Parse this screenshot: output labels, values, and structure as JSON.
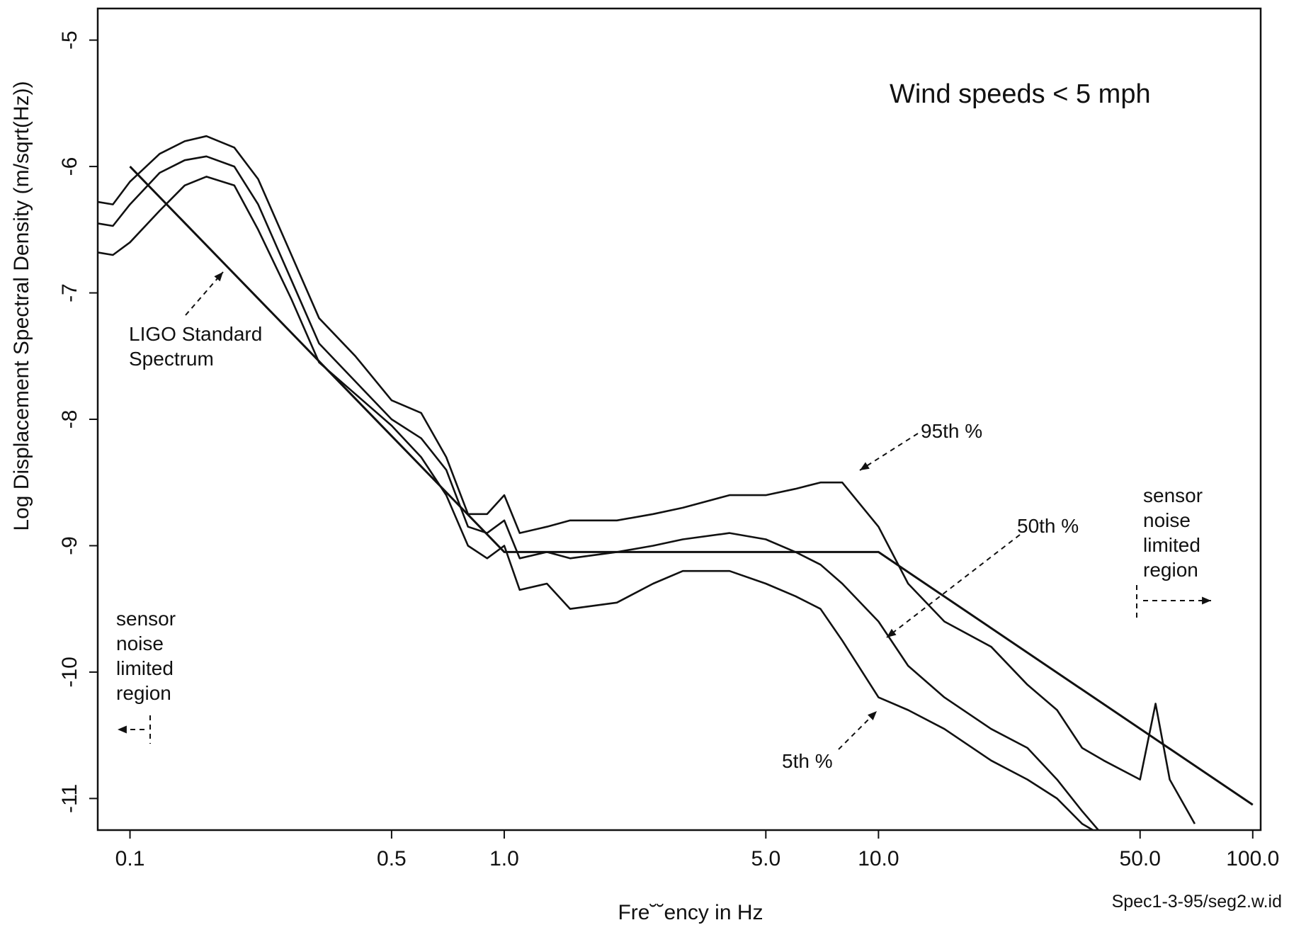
{
  "chart_data": {
    "type": "line",
    "title": "",
    "xlabel": "Fre˘˘ency in Hz",
    "ylabel": "Log Displacement Spectral Density (m/sqrt(Hz))",
    "x_scale": "log",
    "xlim": [
      0.082,
      105
    ],
    "ylim": [
      -11.25,
      -4.75
    ],
    "x_ticks": [
      0.1,
      0.5,
      1.0,
      5.0,
      10.0,
      50.0,
      100.0
    ],
    "x_tick_labels": [
      "0.1",
      "0.5",
      "1.0",
      "5.0",
      "10.0",
      "50.0",
      "100.0"
    ],
    "y_ticks": [
      -5,
      -6,
      -7,
      -8,
      -9,
      -10,
      -11
    ],
    "y_tick_labels": [
      "-5",
      "-6",
      "-7",
      "-8",
      "-9",
      "-10",
      "-11"
    ],
    "grid": false,
    "legend": "none",
    "source_label": "Spec1-3-95/seg2.w.id",
    "annotations": {
      "wind": "Wind speeds < 5 mph",
      "ligo_line1": "LIGO Standard",
      "ligo_line2": "Spectrum",
      "p95": "95th %",
      "p50": "50th %",
      "p5": "5th %",
      "left_sensor": [
        "sensor",
        "noise",
        "limited",
        "region"
      ],
      "right_sensor": [
        "sensor",
        "noise",
        "limited",
        "region"
      ]
    },
    "reference": {
      "name": "LIGO Standard Spectrum",
      "x": [
        0.1,
        1.0,
        10.0,
        100.0
      ],
      "y": [
        -6.0,
        -9.05,
        -9.05,
        -11.05
      ]
    },
    "series": [
      {
        "name": "95th %",
        "x": [
          0.082,
          0.09,
          0.1,
          0.12,
          0.14,
          0.16,
          0.19,
          0.22,
          0.27,
          0.32,
          0.4,
          0.5,
          0.6,
          0.7,
          0.8,
          0.9,
          1.0,
          1.1,
          1.3,
          1.5,
          2.0,
          2.5,
          3.0,
          4.0,
          5.0,
          6.0,
          7.0,
          8.0,
          10.0,
          12.0,
          15.0,
          20.0,
          25.0,
          30.0,
          35.0,
          40.0,
          50.0,
          55.0,
          60.0,
          70.0
        ],
        "y": [
          -6.28,
          -6.3,
          -6.12,
          -5.9,
          -5.8,
          -5.76,
          -5.85,
          -6.1,
          -6.7,
          -7.2,
          -7.5,
          -7.85,
          -7.95,
          -8.3,
          -8.75,
          -8.75,
          -8.6,
          -8.9,
          -8.85,
          -8.8,
          -8.8,
          -8.75,
          -8.7,
          -8.6,
          -8.6,
          -8.55,
          -8.5,
          -8.5,
          -8.85,
          -9.3,
          -9.6,
          -9.8,
          -10.1,
          -10.3,
          -10.6,
          -10.7,
          -10.85,
          -10.25,
          -10.85,
          -11.2
        ]
      },
      {
        "name": "50th %",
        "x": [
          0.082,
          0.09,
          0.1,
          0.12,
          0.14,
          0.16,
          0.19,
          0.22,
          0.27,
          0.32,
          0.4,
          0.5,
          0.6,
          0.7,
          0.8,
          0.9,
          1.0,
          1.1,
          1.3,
          1.5,
          2.0,
          2.5,
          3.0,
          4.0,
          5.0,
          6.0,
          7.0,
          8.0,
          10.0,
          12.0,
          15.0,
          20.0,
          25.0,
          30.0,
          35.0,
          40.0
        ],
        "y": [
          -6.45,
          -6.47,
          -6.3,
          -6.05,
          -5.95,
          -5.92,
          -6.0,
          -6.3,
          -6.9,
          -7.4,
          -7.7,
          -8.0,
          -8.15,
          -8.4,
          -8.85,
          -8.9,
          -8.8,
          -9.1,
          -9.05,
          -9.1,
          -9.05,
          -9.0,
          -8.95,
          -8.9,
          -8.95,
          -9.05,
          -9.15,
          -9.3,
          -9.6,
          -9.95,
          -10.2,
          -10.45,
          -10.6,
          -10.85,
          -11.1,
          -11.3
        ]
      },
      {
        "name": "5th %",
        "x": [
          0.082,
          0.09,
          0.1,
          0.12,
          0.14,
          0.16,
          0.19,
          0.22,
          0.27,
          0.32,
          0.4,
          0.5,
          0.6,
          0.7,
          0.8,
          0.9,
          1.0,
          1.1,
          1.3,
          1.5,
          2.0,
          2.5,
          3.0,
          4.0,
          5.0,
          6.0,
          7.0,
          8.0,
          10.0,
          12.0,
          15.0,
          20.0,
          25.0,
          30.0,
          35.0,
          40.0
        ],
        "y": [
          -6.68,
          -6.7,
          -6.6,
          -6.35,
          -6.15,
          -6.08,
          -6.15,
          -6.5,
          -7.05,
          -7.55,
          -7.8,
          -8.05,
          -8.3,
          -8.6,
          -9.0,
          -9.1,
          -9.0,
          -9.35,
          -9.3,
          -9.5,
          -9.45,
          -9.3,
          -9.2,
          -9.2,
          -9.3,
          -9.4,
          -9.5,
          -9.75,
          -10.2,
          -10.3,
          -10.45,
          -10.7,
          -10.85,
          -11.0,
          -11.2,
          -11.3
        ]
      }
    ]
  }
}
